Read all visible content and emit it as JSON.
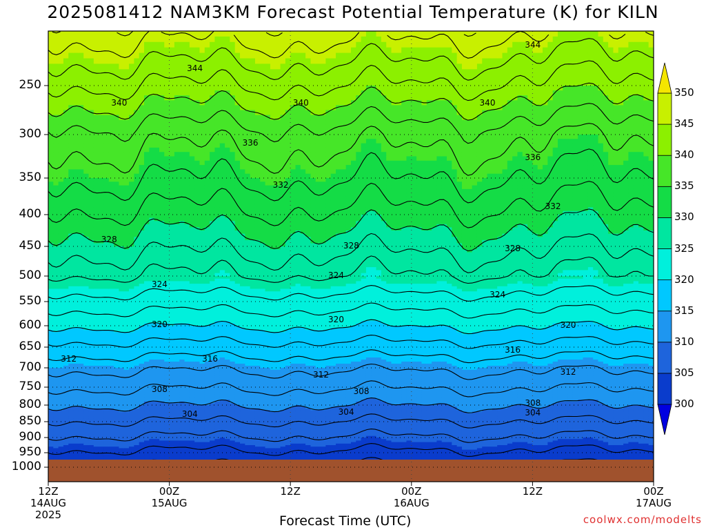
{
  "chart_data": {
    "type": "heatmap",
    "title": "2025081412 NAM3KM Forecast Potential Temperature (K) for KILN",
    "xlabel": "Forecast Time (UTC)",
    "ylabel": "",
    "y_ticks": [
      "250",
      "300",
      "350",
      "400",
      "450",
      "500",
      "550",
      "600",
      "650",
      "700",
      "750",
      "800",
      "850",
      "900",
      "950",
      "1000"
    ],
    "x_ticks": [
      {
        "hour": 0,
        "lines": [
          "12Z",
          "14AUG",
          "2025"
        ]
      },
      {
        "hour": 12,
        "lines": [
          "00Z",
          "15AUG"
        ]
      },
      {
        "hour": 24,
        "lines": [
          "12Z"
        ]
      },
      {
        "hour": 36,
        "lines": [
          "00Z",
          "16AUG"
        ]
      },
      {
        "hour": 48,
        "lines": [
          "12Z"
        ]
      },
      {
        "hour": 60,
        "lines": [
          "00Z",
          "17AUG"
        ]
      }
    ],
    "colorbar": {
      "levels": [
        "300",
        "305",
        "310",
        "315",
        "320",
        "325",
        "330",
        "335",
        "340",
        "345",
        "350"
      ],
      "colors": [
        "#0000e0",
        "#0a3ccc",
        "#1e64dc",
        "#1e96f0",
        "#00c8ff",
        "#00f0dc",
        "#00e6a0",
        "#14dc46",
        "#46e628",
        "#8cf000",
        "#c8f000",
        "#f5e600"
      ]
    },
    "contour_labels": [
      {
        "value": "344",
        "hour": 14.5,
        "pres": 235
      },
      {
        "value": "344",
        "hour": 48.0,
        "pres": 213
      },
      {
        "value": "340",
        "hour": 7.0,
        "pres": 268
      },
      {
        "value": "340",
        "hour": 25.0,
        "pres": 268
      },
      {
        "value": "340",
        "hour": 43.5,
        "pres": 268
      },
      {
        "value": "336",
        "hour": 20.0,
        "pres": 310
      },
      {
        "value": "336",
        "hour": 48.0,
        "pres": 327
      },
      {
        "value": "332",
        "hour": 23.0,
        "pres": 360
      },
      {
        "value": "332",
        "hour": 50.0,
        "pres": 390
      },
      {
        "value": "328",
        "hour": 6.0,
        "pres": 440
      },
      {
        "value": "328",
        "hour": 30.0,
        "pres": 450
      },
      {
        "value": "328",
        "hour": 46.0,
        "pres": 455
      },
      {
        "value": "324",
        "hour": 11.0,
        "pres": 518
      },
      {
        "value": "324",
        "hour": 28.5,
        "pres": 500
      },
      {
        "value": "324",
        "hour": 44.5,
        "pres": 538
      },
      {
        "value": "320",
        "hour": 11.0,
        "pres": 598
      },
      {
        "value": "320",
        "hour": 28.5,
        "pres": 588
      },
      {
        "value": "320",
        "hour": 51.5,
        "pres": 600
      },
      {
        "value": "316",
        "hour": 16.0,
        "pres": 680
      },
      {
        "value": "316",
        "hour": 46.0,
        "pres": 658
      },
      {
        "value": "312",
        "hour": 2.0,
        "pres": 680
      },
      {
        "value": "312",
        "hour": 27.0,
        "pres": 720
      },
      {
        "value": "312",
        "hour": 51.5,
        "pres": 712
      },
      {
        "value": "308",
        "hour": 11.0,
        "pres": 757
      },
      {
        "value": "308",
        "hour": 31.0,
        "pres": 763
      },
      {
        "value": "308",
        "hour": 48.0,
        "pres": 797
      },
      {
        "value": "304",
        "hour": 14.0,
        "pres": 830
      },
      {
        "value": "304",
        "hour": 29.5,
        "pres": 822
      },
      {
        "value": "304",
        "hour": 48.0,
        "pres": 826
      }
    ]
  },
  "credit": "coolwx.com/modelts"
}
